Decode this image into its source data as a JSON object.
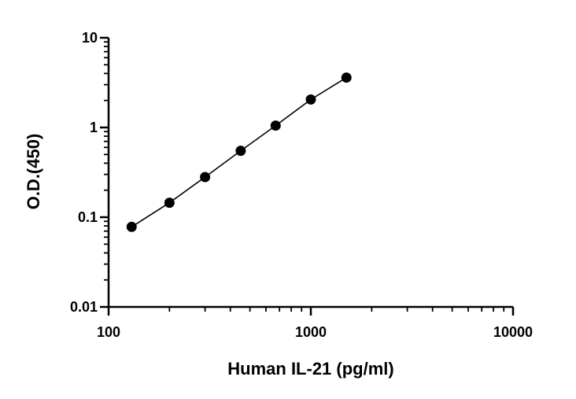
{
  "chart_data": {
    "type": "scatter",
    "title": "",
    "xlabel": "Human IL-21 (pg/ml)",
    "ylabel": "O.D.(450)",
    "x_scale": "log",
    "y_scale": "log",
    "xlim": [
      100,
      10000
    ],
    "ylim": [
      0.01,
      10
    ],
    "x_ticks": [
      {
        "value": 100,
        "label": "100"
      },
      {
        "value": 1000,
        "label": "1000"
      },
      {
        "value": 10000,
        "label": "10000"
      }
    ],
    "y_ticks": [
      {
        "value": 10,
        "label": "10"
      },
      {
        "value": 1,
        "label": "1"
      },
      {
        "value": 0.1,
        "label": "0.1"
      },
      {
        "value": 0.01,
        "label": "0.01"
      }
    ],
    "grid": false,
    "legend": "none",
    "series": [
      {
        "x": [
          130,
          200,
          300,
          450,
          670,
          1000,
          1500
        ],
        "y": [
          0.078,
          0.145,
          0.28,
          0.55,
          1.05,
          2.05,
          3.6
        ],
        "marker": "circle",
        "line": "fit",
        "color": "#000000"
      }
    ]
  }
}
